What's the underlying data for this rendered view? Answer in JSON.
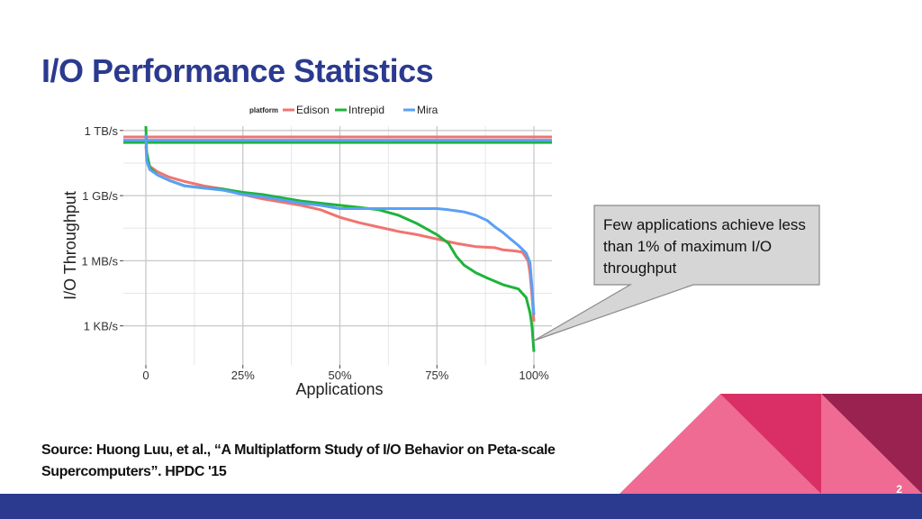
{
  "slide": {
    "title": "I/O Performance Statistics",
    "callout": "Few applications achieve less than 1% of maximum I/O throughput",
    "source": "Source: Huong Luu, et al., “A Multiplatform Study of I/O Behavior on Peta-scale Supercomputers”. HPDC '15",
    "page_number": "2"
  },
  "colors": {
    "title": "#2b3a8f",
    "footer": "#2b3a8f",
    "pink_light": "#ef6b93",
    "pink_mid": "#d92f66",
    "maroon": "#9a2250"
  },
  "chart_data": {
    "type": "line",
    "title": "",
    "xlabel": "Applications",
    "ylabel": "I/O Throughput",
    "legend_title": "platform",
    "legend_position": "top",
    "grid": true,
    "xlim": [
      0,
      100
    ],
    "x_ticks": [
      0,
      25,
      50,
      75,
      100
    ],
    "x_tick_labels": [
      "0",
      "25%",
      "50%",
      "75%",
      "100%"
    ],
    "y_scale": "log10 bytes/s",
    "ylim_log10": [
      1.2,
      12.2
    ],
    "y_ticks_log10": [
      3,
      6,
      9,
      12
    ],
    "y_tick_labels": [
      "1 KB/s",
      "1 MB/s",
      "1 GB/s",
      "1 TB/s"
    ],
    "series": [
      {
        "name": "Edison",
        "color": "#f07470",
        "max_log10": 11.7,
        "x": [
          0,
          0.3,
          1,
          3,
          6,
          10,
          15,
          20,
          25,
          30,
          35,
          40,
          45,
          50,
          55,
          60,
          65,
          70,
          75,
          80,
          85,
          90,
          92,
          95,
          97,
          98.5,
          99,
          99.5,
          100
        ],
        "y_log10": [
          11.3,
          10.6,
          10.35,
          10.1,
          9.85,
          9.65,
          9.45,
          9.3,
          9.05,
          8.85,
          8.7,
          8.55,
          8.35,
          8.0,
          7.75,
          7.55,
          7.35,
          7.2,
          7.0,
          6.8,
          6.65,
          6.6,
          6.5,
          6.45,
          6.4,
          6.0,
          5.4,
          4.4,
          3.2
        ]
      },
      {
        "name": "Intrepid",
        "color": "#1fb33b",
        "max_log10": 11.45,
        "x": [
          0,
          0.2,
          1,
          3,
          6,
          10,
          15,
          20,
          25,
          30,
          35,
          40,
          45,
          50,
          55,
          60,
          65,
          70,
          75,
          78,
          80,
          82,
          85,
          88,
          90,
          92,
          94,
          96,
          98,
          99,
          99.5,
          100
        ],
        "y_log10": [
          12.2,
          11.0,
          10.3,
          9.95,
          9.7,
          9.45,
          9.35,
          9.3,
          9.15,
          9.05,
          8.9,
          8.75,
          8.65,
          8.55,
          8.45,
          8.35,
          8.1,
          7.7,
          7.2,
          6.8,
          6.2,
          5.8,
          5.45,
          5.2,
          5.05,
          4.9,
          4.8,
          4.7,
          4.3,
          3.6,
          3.0,
          1.8
        ]
      },
      {
        "name": "Mira",
        "color": "#5aa0f5",
        "max_log10": 11.55,
        "x": [
          0,
          0.2,
          1,
          3,
          6,
          10,
          15,
          20,
          25,
          30,
          35,
          40,
          45,
          50,
          55,
          60,
          65,
          70,
          75,
          78,
          80,
          82,
          85,
          88,
          90,
          92,
          94,
          96,
          98,
          99,
          99.5,
          100
        ],
        "y_log10": [
          11.8,
          10.6,
          10.2,
          9.95,
          9.7,
          9.45,
          9.35,
          9.25,
          9.05,
          8.95,
          8.8,
          8.65,
          8.55,
          8.4,
          8.4,
          8.4,
          8.4,
          8.4,
          8.4,
          8.35,
          8.3,
          8.25,
          8.1,
          7.85,
          7.55,
          7.3,
          7.0,
          6.7,
          6.35,
          5.9,
          4.8,
          3.5
        ]
      }
    ]
  }
}
